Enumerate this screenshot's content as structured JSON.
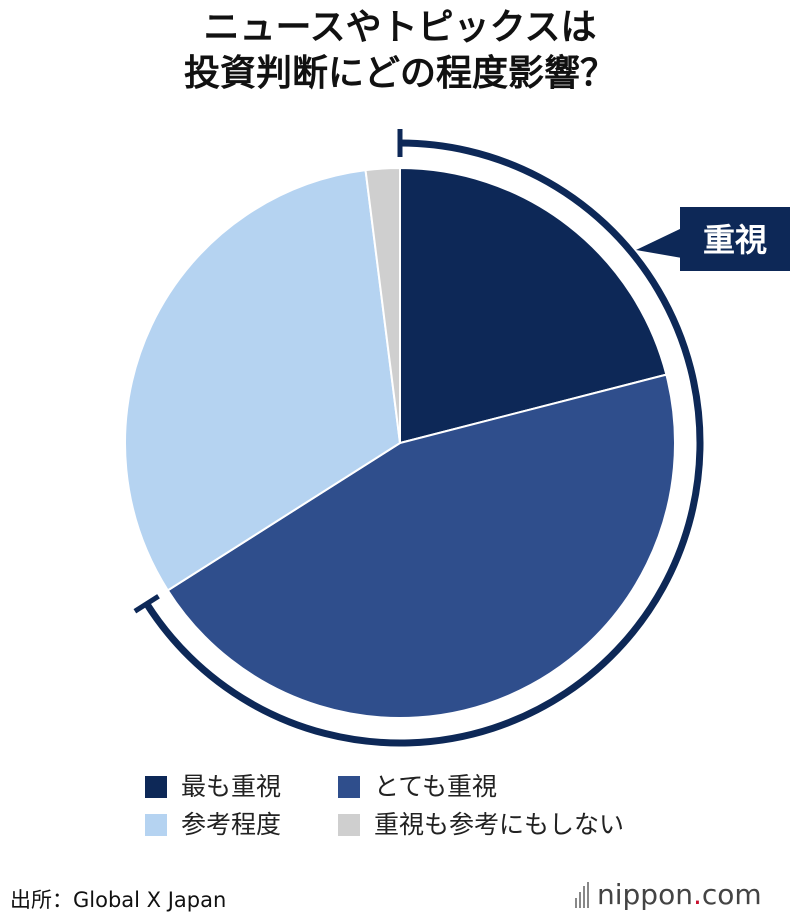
{
  "title": {
    "line1": "ニュースやトピックスは",
    "line2": "投資判断にどの程度影響？"
  },
  "chart_data": {
    "type": "pie",
    "title": "ニュースやトピックスは投資判断にどの程度影響？",
    "slices": [
      {
        "label": "最も重視",
        "value": 21,
        "color": "#0d2857"
      },
      {
        "label": "とても重視",
        "value": 45,
        "color": "#2f4e8c"
      },
      {
        "label": "参考程度",
        "value": 32,
        "color": "#b5d3f1"
      },
      {
        "label": "重視も参考にもしない",
        "value": 2,
        "color": "#cfcfcf"
      }
    ],
    "annotation": {
      "label": "重視",
      "covers": [
        "最も重視",
        "とても重視"
      ],
      "color": "#0d2857"
    },
    "legend_position": "bottom"
  },
  "source": "出所：Global X Japan",
  "brand": {
    "name": "nippon",
    "suffix": "com",
    "dot": "."
  }
}
